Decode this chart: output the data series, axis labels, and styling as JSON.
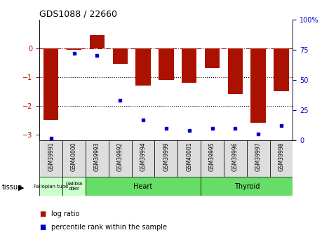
{
  "title": "GDS1088 / 22660",
  "samples": [
    "GSM39991",
    "GSM40000",
    "GSM39993",
    "GSM39992",
    "GSM39994",
    "GSM39999",
    "GSM40001",
    "GSM39995",
    "GSM39996",
    "GSM39997",
    "GSM39998"
  ],
  "log_ratios": [
    -2.5,
    -0.05,
    0.45,
    -0.55,
    -1.3,
    -1.1,
    -1.2,
    -0.7,
    -1.6,
    -2.6,
    -1.5
  ],
  "percentile_ranks": [
    2,
    72,
    70,
    33,
    17,
    10,
    8,
    10,
    10,
    5,
    12
  ],
  "tissues": [
    {
      "label": "Fallopian tube",
      "start": 0,
      "end": 1,
      "color": "#ccffcc"
    },
    {
      "label": "Gallbla\ndder",
      "start": 1,
      "end": 2,
      "color": "#ccffcc"
    },
    {
      "label": "Heart",
      "start": 2,
      "end": 7,
      "color": "#66dd66"
    },
    {
      "label": "Thyroid",
      "start": 7,
      "end": 11,
      "color": "#66dd66"
    }
  ],
  "bar_color": "#aa1100",
  "dot_color": "#0000cc",
  "ylim_left": [
    -3.2,
    1.0
  ],
  "ylim_right": [
    0,
    100
  ],
  "yticks_left": [
    -3,
    -2,
    -1,
    0
  ],
  "yticks_right": [
    0,
    25,
    50,
    75,
    100
  ],
  "hline_y": 0,
  "dotted_lines": [
    -1,
    -2
  ],
  "background_color": "#ffffff",
  "sample_label_bg": "#dddddd"
}
